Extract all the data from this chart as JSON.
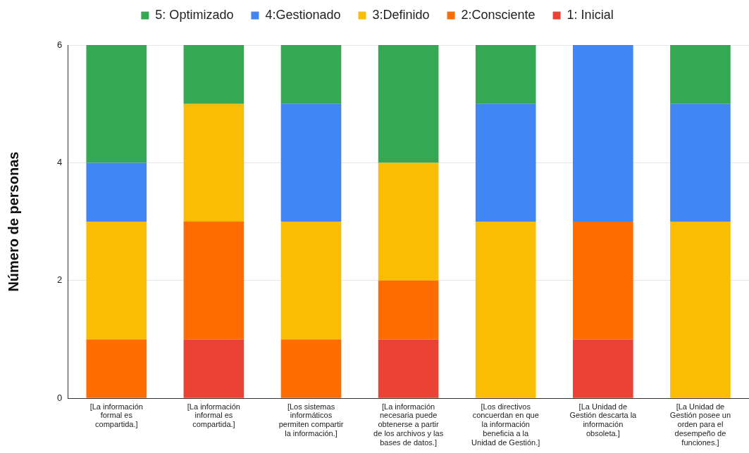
{
  "chart_data": {
    "type": "bar",
    "stacked": true,
    "categories": [
      "[La información formal es compartida.]",
      "[La información informal es compartida.]",
      "[Los sistemas informáticos permiten compartir la información.]",
      "[La información necesaria puede obtenerse a partir de los archivos y las bases de datos.]",
      "[Los directivos concuerdan en que la información beneficia a la Unidad de Gestión.]",
      "[La Unidad de Gestión descarta la información obsoleta.]",
      "[La Unidad de Gestión posee un orden para el desempeño de funciones.]"
    ],
    "series": [
      {
        "name": "1: Inicial",
        "color": "#ea4335",
        "values": [
          0,
          1,
          0,
          1,
          0,
          1,
          0
        ]
      },
      {
        "name": "2:Consciente",
        "color": "#ff6d01",
        "values": [
          1,
          2,
          1,
          1,
          0,
          2,
          0
        ]
      },
      {
        "name": "3:Definido",
        "color": "#fbbc04",
        "values": [
          2,
          2,
          2,
          2,
          3,
          0,
          3
        ]
      },
      {
        "name": "4:Gestionado",
        "color": "#4285f4",
        "values": [
          1,
          0,
          2,
          0,
          2,
          3,
          2
        ]
      },
      {
        "name": "5: Optimizado",
        "color": "#34a853",
        "values": [
          2,
          1,
          1,
          2,
          1,
          0,
          1
        ]
      }
    ],
    "ylabel": "Número de personas",
    "ylim": [
      0,
      6
    ],
    "yticks": [
      0,
      2,
      4,
      6
    ],
    "grid": "y",
    "legend": "top"
  }
}
